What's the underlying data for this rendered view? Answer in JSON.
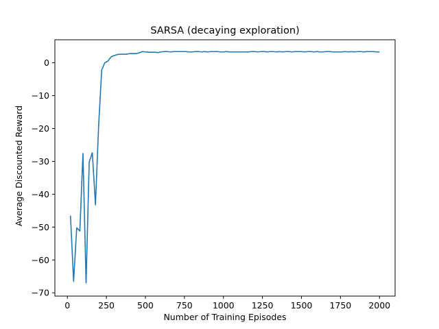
{
  "chart_data": {
    "type": "line",
    "title": "SARSA (decaying exploration)",
    "xlabel": "Number of Training Episodes",
    "ylabel": "Average Discounted Reward",
    "xlim": [
      -80,
      2100
    ],
    "ylim": [
      -71,
      7
    ],
    "xticks": [
      0,
      250,
      500,
      750,
      1000,
      1250,
      1500,
      1750,
      2000
    ],
    "yticks": [
      -70,
      -60,
      -50,
      -40,
      -30,
      -20,
      -10,
      0
    ],
    "grid": false,
    "line_color": "#1f77b4",
    "series": [
      {
        "x": [
          20,
          40,
          60,
          80,
          100,
          120,
          140,
          160,
          180,
          200,
          220,
          240,
          260,
          280,
          300,
          320,
          340,
          360,
          380,
          400,
          420,
          440,
          460,
          480,
          500,
          520,
          540,
          560,
          580,
          600,
          620,
          640,
          660,
          680,
          700,
          720,
          740,
          760,
          780,
          800,
          820,
          840,
          860,
          880,
          900,
          920,
          940,
          960,
          980,
          1000,
          1020,
          1040,
          1060,
          1080,
          1100,
          1120,
          1140,
          1160,
          1180,
          1200,
          1220,
          1240,
          1260,
          1280,
          1300,
          1320,
          1340,
          1360,
          1380,
          1400,
          1420,
          1440,
          1460,
          1480,
          1500,
          1520,
          1540,
          1560,
          1580,
          1600,
          1620,
          1640,
          1660,
          1680,
          1700,
          1720,
          1740,
          1760,
          1780,
          1800,
          1820,
          1840,
          1860,
          1880,
          1900,
          1920,
          1940,
          1960,
          1980,
          2000
        ],
        "y": [
          -46.5,
          -66.5,
          -50.2,
          -51.2,
          -27.6,
          -67.0,
          -30.2,
          -27.4,
          -43.2,
          -19.5,
          -2.2,
          0.0,
          0.5,
          1.8,
          2.2,
          2.5,
          2.6,
          2.6,
          2.6,
          2.8,
          2.8,
          2.8,
          3.0,
          3.4,
          3.3,
          3.2,
          3.2,
          3.2,
          3.1,
          3.3,
          3.4,
          3.4,
          3.3,
          3.4,
          3.4,
          3.4,
          3.4,
          3.4,
          3.3,
          3.3,
          3.4,
          3.4,
          3.3,
          3.4,
          3.3,
          3.4,
          3.4,
          3.4,
          3.3,
          3.3,
          3.4,
          3.3,
          3.3,
          3.3,
          3.3,
          3.3,
          3.3,
          3.3,
          3.4,
          3.4,
          3.3,
          3.4,
          3.4,
          3.3,
          3.4,
          3.4,
          3.3,
          3.4,
          3.3,
          3.4,
          3.4,
          3.3,
          3.4,
          3.4,
          3.4,
          3.3,
          3.4,
          3.4,
          3.3,
          3.4,
          3.3,
          3.3,
          3.4,
          3.4,
          3.3,
          3.3,
          3.3,
          3.3,
          3.4,
          3.3,
          3.4,
          3.3,
          3.4,
          3.4,
          3.3,
          3.4,
          3.4,
          3.4,
          3.3,
          3.3
        ]
      }
    ]
  }
}
